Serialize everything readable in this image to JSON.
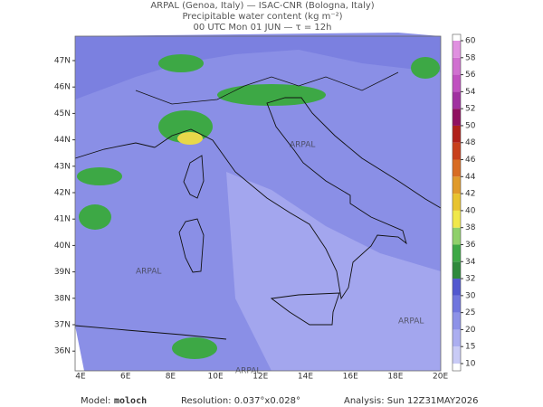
{
  "header": {
    "line1": "ARPAL (Genoa, Italy)  —  ISAC-CNR (Bologna, Italy)",
    "line2": "Precipitable water content (kg m⁻²)",
    "line3": "00 UTC Mon 01 JUN  —  τ = 12h"
  },
  "map": {
    "lat_labels": [
      "47N",
      "46N",
      "45N",
      "44N",
      "43N",
      "42N",
      "41N",
      "40N",
      "39N",
      "38N",
      "37N",
      "36N"
    ],
    "lon_labels": [
      "4E",
      "6E",
      "8E",
      "10E",
      "12E",
      "14E",
      "16E",
      "18E",
      "20E"
    ],
    "watermark": "ARPAL"
  },
  "colorbar": {
    "levels": [
      "10",
      "15",
      "20",
      "25",
      "30",
      "32",
      "34",
      "36",
      "38",
      "40",
      "42",
      "44",
      "46",
      "48",
      "50",
      "52",
      "54",
      "56",
      "58",
      "60"
    ],
    "colors": [
      "#c9cbf6",
      "#abaef0",
      "#8d92e8",
      "#7076de",
      "#5258cf",
      "#2f8a3c",
      "#3da845",
      "#8fd06a",
      "#f0e84a",
      "#e8c32e",
      "#e09a2a",
      "#d86c22",
      "#c8401c",
      "#b0201a",
      "#901060",
      "#a030a0",
      "#c050c0",
      "#d070d0",
      "#e090e0"
    ]
  },
  "footer": {
    "model_label": "Model:",
    "model": "moloch",
    "resolution": "Resolution: 0.037°x0.028°",
    "analysis": "Analysis: Sun 12Z31MAY2026"
  }
}
